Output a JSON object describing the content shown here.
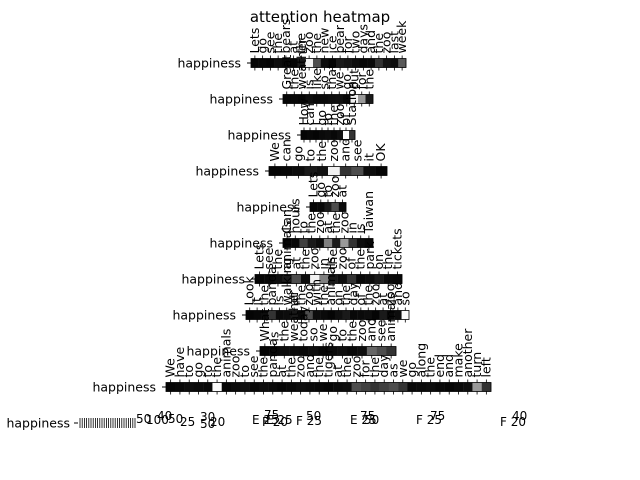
{
  "chart_data": {
    "type": "heatmap",
    "title": "attention heatmap",
    "color_scale": {
      "low": "#000000",
      "high": "#ffffff"
    },
    "rows": [
      {
        "label": "happiness",
        "tokens": [
          "Lets",
          "go",
          "see",
          "the",
          "bears",
          "at",
          "the",
          "zoo",
          "the",
          "new",
          "ice",
          "bear",
          "for",
          "two",
          "days",
          "and",
          "the",
          "zoo",
          "last",
          "week"
        ],
        "values": [
          0.02,
          0.03,
          0.02,
          0.05,
          0.03,
          0.02,
          0.1,
          0.95,
          0.3,
          0.05,
          0.02,
          0.1,
          0.08,
          0.05,
          0.03,
          0.04,
          0.2,
          0.08,
          0.05,
          0.35
        ]
      },
      {
        "label": "happiness",
        "tokens": [
          "Great",
          "the",
          "weather",
          "is",
          "like",
          "so",
          "that",
          "we",
          "go",
          "out",
          "for",
          "the"
        ],
        "values": [
          0.02,
          0.03,
          0.02,
          0.05,
          0.03,
          0.04,
          0.05,
          0.06,
          0.03,
          0.95,
          0.6,
          0.1
        ]
      },
      {
        "label": "happiness",
        "tokens": [
          "How",
          "can",
          "I",
          "go",
          "to",
          "the",
          "zoo",
          "of",
          "Station"
        ],
        "values": [
          0.02,
          0.03,
          0.02,
          0.04,
          0.05,
          0.03,
          0.06,
          0.98,
          0.2
        ]
      },
      {
        "label": "happiness",
        "tokens": [
          "We",
          "can",
          "go",
          "to",
          "the",
          "zoo",
          "and",
          "see",
          "it",
          "OK"
        ],
        "values": [
          0.02,
          0.03,
          0.05,
          0.1,
          0.07,
          0.95,
          0.2,
          0.3,
          0.05,
          0.02
        ]
      },
      {
        "label": "happiness",
        "tokens": [
          "Lets",
          "go",
          "to",
          "zoo",
          "at"
        ],
        "values": [
          0.02,
          0.03,
          0.1,
          0.3,
          0.04
        ]
      },
      {
        "label": "happiness",
        "tokens": [
          "Can",
          "hours",
          "to",
          "the",
          "zoo",
          "at",
          "the",
          "zoo",
          "in",
          "is",
          "Taiwan"
        ],
        "values": [
          0.02,
          0.03,
          0.25,
          0.1,
          0.05,
          0.5,
          0.1,
          0.6,
          0.2,
          0.05,
          0.03
        ]
      },
      {
        "label": "happiness",
        "tokens": [
          "Lets",
          "see",
          "the",
          "animals",
          "at",
          "the",
          "zoo",
          "in",
          "the",
          "zoo",
          "of",
          "the",
          "park",
          "on",
          "the",
          "tickets"
        ],
        "values": [
          0.02,
          0.03,
          0.05,
          0.1,
          0.3,
          0.05,
          0.95,
          0.5,
          0.1,
          0.05,
          0.2,
          0.03,
          0.05,
          0.1,
          0.04,
          0.03
        ]
      },
      {
        "label": "happiness",
        "tokens": [
          "Look",
          "it",
          "the",
          "panda",
          "is",
          "walking",
          "at",
          "the",
          "zoo",
          "with",
          "the",
          "animals",
          "on",
          "the",
          "day",
          "of",
          "the",
          "zoo",
          "at",
          "zoo",
          "and",
          "so"
        ],
        "values": [
          0.02,
          0.03,
          0.05,
          0.2,
          0.04,
          0.05,
          0.1,
          0.03,
          0.3,
          0.05,
          0.04,
          0.02,
          0.06,
          0.1,
          0.03,
          0.04,
          0.05,
          0.02,
          0.1,
          0.03,
          0.05,
          0.98
        ]
      },
      {
        "label": "happiness",
        "tokens": [
          "What",
          "is",
          "the",
          "weather",
          "today",
          "so",
          "we",
          "go",
          "to",
          "the",
          "zoo",
          "and",
          "see",
          "animals"
        ],
        "values": [
          0.02,
          0.03,
          0.05,
          0.04,
          0.03,
          0.05,
          0.02,
          0.04,
          0.06,
          0.03,
          0.05,
          0.4,
          0.3,
          0.2
        ]
      },
      {
        "label": "happiness",
        "tokens": [
          "We",
          "have",
          "to",
          "go",
          "to",
          "the",
          "animals",
          "zoo",
          "to",
          "see",
          "the",
          "panda",
          "at",
          "the",
          "zoo",
          "and",
          "the",
          "tigers",
          "at",
          "the",
          "zoo",
          "for",
          "the",
          "day",
          "as",
          "we",
          "go",
          "along",
          "the",
          "end",
          "and",
          "make",
          "another",
          "turn",
          "left"
        ],
        "values": [
          0.02,
          0.03,
          0.05,
          0.04,
          0.03,
          0.98,
          0.02,
          0.04,
          0.06,
          0.03,
          0.05,
          0.04,
          0.02,
          0.03,
          0.05,
          0.04,
          0.03,
          0.02,
          0.04,
          0.05,
          0.3,
          0.25,
          0.2,
          0.25,
          0.3,
          0.2,
          0.03,
          0.04,
          0.05,
          0.03,
          0.02,
          0.04,
          0.06,
          0.6,
          0.2
        ]
      }
    ],
    "bottom_row": {
      "label": "happiness",
      "tick_labels": [
        "50",
        "100",
        "40",
        "50",
        "25",
        "30",
        "50",
        "20",
        "E 25",
        "F 20",
        "75",
        "E 25",
        "50",
        "F 25",
        "75",
        "E 25",
        "50",
        "75",
        "F 25",
        "40",
        "F 20"
      ]
    }
  }
}
